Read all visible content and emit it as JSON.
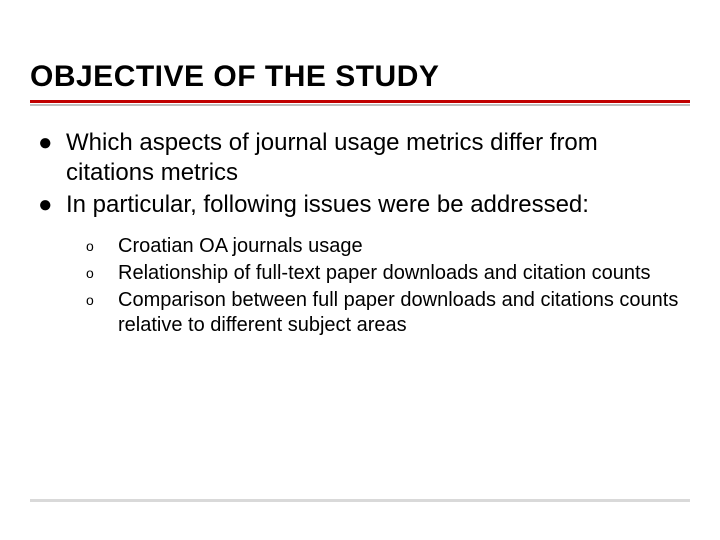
{
  "slide": {
    "title": "OBJECTIVE OF THE STUDY",
    "title_fontsize": 30,
    "title_fontweight": 700,
    "body_fontsize_main": 24,
    "body_fontsize_sub": 20,
    "colors": {
      "background": "#ffffff",
      "text": "#000000",
      "rule_red": "#c00000",
      "rule_gray_top": "#bfbfbf",
      "rule_gray_footer": "#d9d9d9"
    },
    "bullets": {
      "main_glyph": "●",
      "sub_glyph": "o"
    },
    "main_items": [
      {
        "text": "Which aspects of journal usage metrics differ from citations metrics"
      },
      {
        "text": "In particular, following issues were be addressed:"
      }
    ],
    "sub_items": [
      {
        "text": "Croatian OA journals usage"
      },
      {
        "text": "Relationship of full-text paper downloads and citation counts"
      },
      {
        "text": "Comparison between full paper downloads and citations counts relative to different subject areas"
      }
    ]
  }
}
